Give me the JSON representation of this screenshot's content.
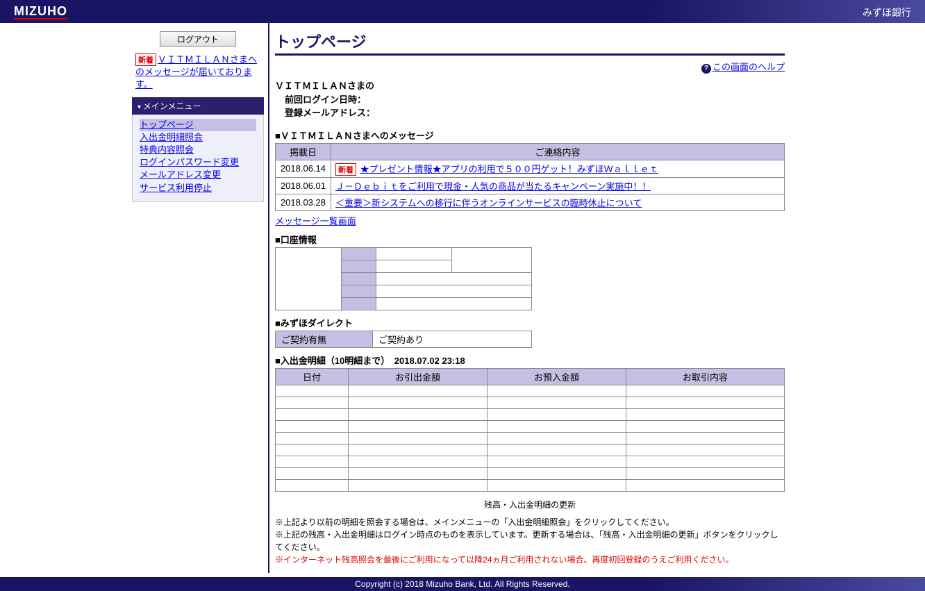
{
  "header": {
    "logo": "MIZUHO",
    "bank_name": "みずほ銀行"
  },
  "sidebar": {
    "logout_label": "ログアウト",
    "new_badge": "新着",
    "notice_text": "ＶＩＴＭＩＬＡＮさまへのメッセージが届いております。",
    "menu_title": "メインメニュー",
    "items": [
      "トップページ",
      "入出金明細照会",
      "特典内容照会",
      "ログインパスワード変更",
      "メールアドレス変更",
      "サービス利用停止"
    ]
  },
  "page": {
    "title": "トップページ",
    "help_label": "この画面のヘルプ",
    "user_name_line": "ＶＩＴＭＩＬＡＮさまの",
    "last_login_label": "前回ログイン日時：",
    "email_label": "登録メールアドレス："
  },
  "messages": {
    "section_title": "■ＶＩＴＭＩＬＡＮさまへのメッセージ",
    "col_date": "掲載日",
    "col_content": "ご連絡内容",
    "rows": [
      {
        "date": "2018.06.14",
        "new": true,
        "text": "★プレゼント情報★アプリの利用で５００円ゲット！みずほＷａｌｌｅｔ"
      },
      {
        "date": "2018.06.01",
        "new": false,
        "text": "Ｊ－Ｄｅｂｉｔをご利用で現金・人気の商品が当たるキャンペーン実施中！！"
      },
      {
        "date": "2018.03.28",
        "new": false,
        "text": "＜重要＞新システムへの移行に伴うオンラインサービスの臨時休止について"
      }
    ],
    "list_link": "メッセージ一覧画面"
  },
  "account": {
    "section_title": "■口座情報"
  },
  "direct": {
    "section_title": "■みずほダイレクト",
    "label": "ご契約有無",
    "value": "ご契約あり"
  },
  "transactions": {
    "section_title": "■入出金明細（10明細まで）　2018.07.02 23:18",
    "col_date": "日付",
    "col_withdraw": "お引出金額",
    "col_deposit": "お預入金額",
    "col_desc": "お取引内容",
    "row_count": 9,
    "update_label": "残高・入出金明細の更新"
  },
  "notes": {
    "line1": "※上記より以前の明細を照会する場合は、メインメニューの「入出金明細照会」をクリックしてください。",
    "line2": "※上記の残高・入出金明細はログイン時点のものを表示しています。更新する場合は、「残高・入出金明細の更新」ボタンをクリックしてください。",
    "warn": "※インターネット残高照会を最後にご利用になって以降24ヵ月ご利用されない場合、再度初回登録のうえご利用ください。"
  },
  "footer": {
    "copyright": "Copyright (c) 2018 Mizuho Bank, Ltd. All Rights Reserved."
  }
}
